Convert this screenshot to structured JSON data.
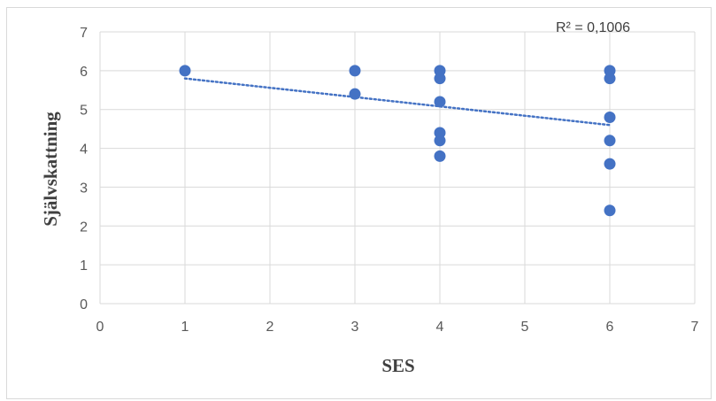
{
  "chart_data": {
    "type": "scatter",
    "title": "",
    "xlabel": "SES",
    "ylabel": "Självskattning",
    "xlim": [
      0,
      7
    ],
    "ylim": [
      0,
      7
    ],
    "x_ticks": [
      "0",
      "1",
      "2",
      "3",
      "4",
      "5",
      "6",
      "7"
    ],
    "y_ticks": [
      "0",
      "1",
      "2",
      "3",
      "4",
      "5",
      "6",
      "7"
    ],
    "grid": true,
    "legend": "none",
    "series": [
      {
        "points": [
          {
            "x": 1,
            "y": 6.0
          },
          {
            "x": 3,
            "y": 6.0
          },
          {
            "x": 3,
            "y": 5.4
          },
          {
            "x": 4,
            "y": 6.0
          },
          {
            "x": 4,
            "y": 5.8
          },
          {
            "x": 4,
            "y": 5.2
          },
          {
            "x": 4,
            "y": 4.4
          },
          {
            "x": 4,
            "y": 4.2
          },
          {
            "x": 4,
            "y": 3.8
          },
          {
            "x": 6,
            "y": 6.0
          },
          {
            "x": 6,
            "y": 5.8
          },
          {
            "x": 6,
            "y": 4.8
          },
          {
            "x": 6,
            "y": 4.2
          },
          {
            "x": 6,
            "y": 3.6
          },
          {
            "x": 6,
            "y": 2.4
          }
        ]
      }
    ],
    "trendline": {
      "type": "linear",
      "x_range": [
        1,
        6
      ],
      "y_at_start": 5.8,
      "y_at_end": 4.6,
      "label": "R² = 0,1006"
    },
    "colors": {
      "marker": "#4472c4",
      "trendline": "#4472c4",
      "grid": "#d9d9d9",
      "tick_text": "#595959",
      "axis_title": "#404040"
    }
  }
}
